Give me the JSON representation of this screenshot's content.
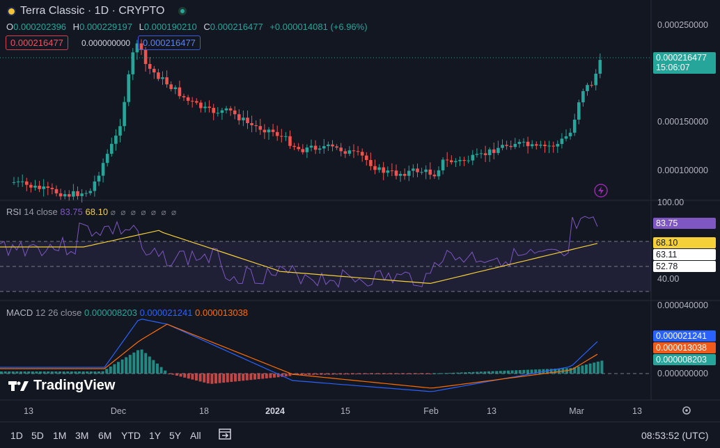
{
  "header": {
    "title": "Terra Classic · 1D · CRYPTO",
    "ohlc": [
      {
        "key": "O",
        "value": "0.000202396"
      },
      {
        "key": "H",
        "value": "0.000229197"
      },
      {
        "key": "L",
        "value": "0.000190210"
      },
      {
        "key": "C",
        "value": "0.000216477"
      }
    ],
    "change": "+0.000014081 (+6.96%)",
    "sell_price": "0.000216477",
    "spread": "0.000000000",
    "buy_price": "0.000216477"
  },
  "price_axis": {
    "labels": [
      "0.000250000",
      "0.000150000",
      "0.000100000"
    ],
    "last_price": "0.000216477",
    "countdown": "15:06:07"
  },
  "rsi": {
    "label": "RSI",
    "params": "14 close",
    "value": "83.75",
    "ma_value": "68.10",
    "axis_labels": [
      "100.00",
      "40.00"
    ],
    "tags": [
      "83.75",
      "68.10",
      "63.11",
      "52.78"
    ]
  },
  "macd": {
    "label": "MACD",
    "params": "12 26 close",
    "hist": "0.000008203",
    "macd": "0.000021241",
    "signal": "0.000013038",
    "axis_labels": [
      "0.000040000",
      "0.000000000"
    ],
    "tags": [
      "0.000021241",
      "0.000013038",
      "0.000008203"
    ]
  },
  "indicator_glyphs": "⌀ ⌀ ⌀ ⌀ ⌀ ⌀ ⌀",
  "time_axis": [
    "13",
    "Dec",
    "18",
    "2024",
    "15",
    "Feb",
    "13",
    "Mar",
    "13"
  ],
  "timeframes": [
    "1D",
    "5D",
    "1M",
    "3M",
    "6M",
    "YTD",
    "1Y",
    "5Y",
    "All"
  ],
  "clock": "08:53:52 (UTC)",
  "brand": "TradingView",
  "colors": {
    "up": "#26a69a",
    "down": "#ef5350",
    "rsi": "#7e57c2",
    "rsi_ma": "#f5d038",
    "macd": "#2962ff",
    "signal": "#ff6d00"
  }
}
